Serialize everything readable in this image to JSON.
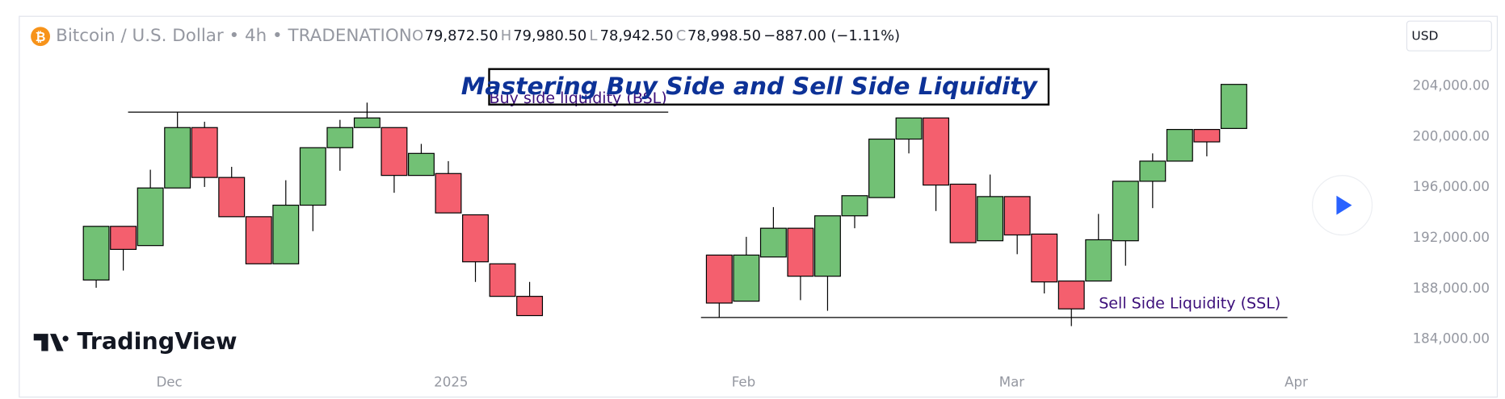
{
  "header": {
    "symbol": "Bitcoin / U.S. Dollar • 4h • TRADENATION",
    "o_label": "O",
    "open": "79,872.50",
    "h_label": "H",
    "high": "79,980.50",
    "l_label": "L",
    "low": "78,942.50",
    "c_label": "C",
    "close": "78,998.50",
    "change": "−887.00 (−1.11%)"
  },
  "currency": "USD",
  "logo": "TradingView",
  "chart_data": {
    "type": "candlestick",
    "title": "Mastering Buy Side and Sell Side Liquidity",
    "x": [
      0,
      1,
      2,
      3,
      4,
      5,
      6,
      7,
      8,
      9,
      10,
      11,
      12,
      13,
      14,
      15,
      16,
      23,
      24,
      25,
      26,
      27,
      28,
      29,
      30,
      31,
      32,
      33,
      34,
      35,
      36,
      37,
      38,
      39,
      40,
      41,
      42
    ],
    "open": [
      188700,
      192940,
      191420,
      195970,
      200740,
      196800,
      193700,
      189980,
      194610,
      199150,
      200740,
      200740,
      196960,
      197110,
      193850,
      189980,
      187410,
      190670,
      187030,
      190520,
      192790,
      189000,
      193770,
      195210,
      199830,
      201500,
      196270,
      191800,
      195290,
      192330,
      188620,
      188620,
      191800,
      196500,
      198090,
      200590,
      200670
    ],
    "high": [
      192940,
      192940,
      197410,
      201960,
      201200,
      197640,
      193700,
      196580,
      199150,
      201350,
      202710,
      200740,
      199450,
      198090,
      193850,
      189980,
      188550,
      190670,
      192110,
      194460,
      192790,
      193770,
      195360,
      199830,
      201500,
      201500,
      196270,
      197030,
      195290,
      192330,
      188620,
      193920,
      196500,
      198700,
      200590,
      200590,
      204150
    ],
    "low": [
      188090,
      189450,
      191420,
      195970,
      196050,
      193700,
      189980,
      189980,
      192560,
      197330,
      200740,
      195590,
      196960,
      194000,
      188550,
      187410,
      185890,
      185740,
      187030,
      190520,
      187110,
      186270,
      192790,
      195210,
      198700,
      194150,
      191650,
      191800,
      190740,
      187640,
      185060,
      188620,
      189830,
      194380,
      198090,
      198470,
      200670
    ],
    "close": [
      192940,
      191120,
      195970,
      200740,
      196800,
      193700,
      189980,
      194610,
      199150,
      200740,
      201500,
      196960,
      198700,
      194000,
      190140,
      187410,
      185890,
      186880,
      190670,
      192790,
      189000,
      193770,
      195360,
      199830,
      201500,
      196200,
      191650,
      195290,
      192260,
      188550,
      186420,
      191880,
      196500,
      198090,
      200590,
      199610,
      204150
    ],
    "colors": {
      "up": "#72c175",
      "down": "#f45f6e"
    },
    "xlim": [
      -2.84,
      47.28
    ],
    "xticks": [
      {
        "value": 2.7,
        "label": "Dec"
      },
      {
        "value": 13.1,
        "label": "2025"
      },
      {
        "value": 23.9,
        "label": "Feb"
      },
      {
        "value": 33.8,
        "label": "Mar"
      },
      {
        "value": 44.3,
        "label": "Apr"
      }
    ],
    "ylim": [
      182000,
      209300
    ],
    "yticks": [
      {
        "value": 184000,
        "label": "184,000.00"
      },
      {
        "value": 188000,
        "label": "188,000.00"
      },
      {
        "value": 192000,
        "label": "192,000.00"
      },
      {
        "value": 196000,
        "label": "196,000.00"
      },
      {
        "value": 200000,
        "label": "200,000.00"
      },
      {
        "value": 204000,
        "label": "204,000.00"
      }
    ],
    "annotations": [
      {
        "text": "Buy side liquidity (BSL)",
        "value": 201960
      },
      {
        "text": "Sell Side Liquidity (SSL)",
        "value": 185740
      }
    ]
  }
}
